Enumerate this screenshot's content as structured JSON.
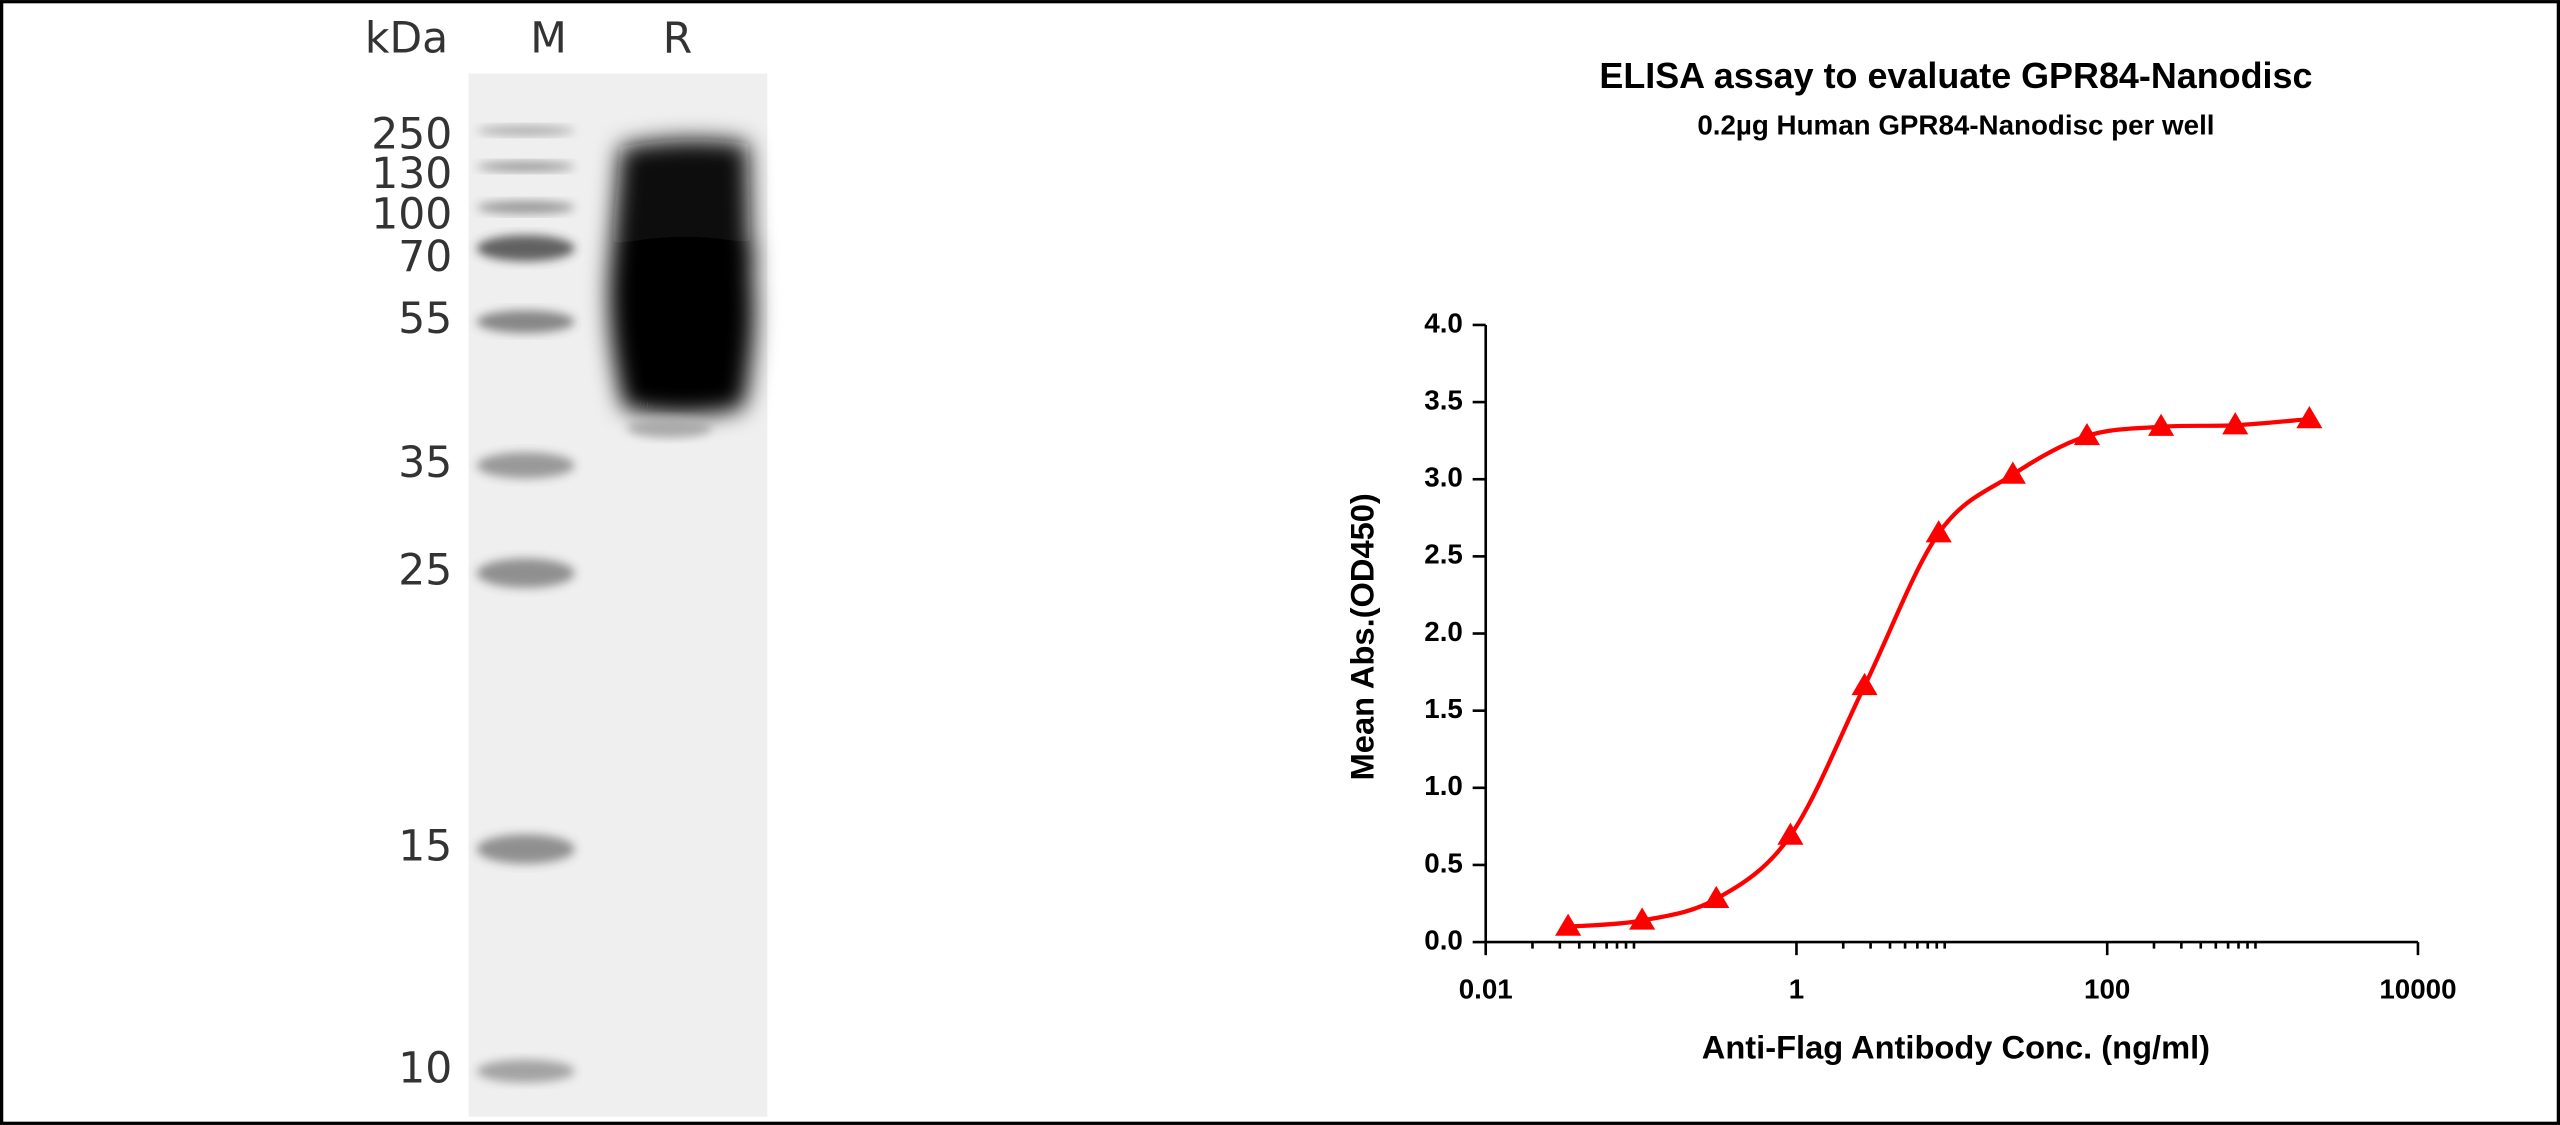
{
  "gel": {
    "unit": "kDa",
    "lane_labels": [
      "M",
      "R"
    ],
    "markers": [
      250,
      130,
      100,
      70,
      55,
      35,
      25,
      15,
      10
    ]
  },
  "chart_data": {
    "type": "scatter",
    "title": "ELISA assay to evaluate GPR84-Nanodisc",
    "subtitle": "0.2µg Human GPR84-Nanodisc per well",
    "x_label": "Anti-Flag Antibody Conc. (ng/ml)",
    "y_label": "Mean Abs.(OD450)",
    "xscale": "log",
    "x": [
      0.0339,
      0.1016,
      0.3048,
      0.9145,
      2.743,
      8.23,
      24.69,
      74.07,
      222.2,
      666.7,
      2000
    ],
    "series": [
      {
        "name": "GPR84-Nanodisc",
        "color": "#ff0000",
        "marker": "triangle",
        "fit_line": true,
        "values": [
          0.1,
          0.14,
          0.28,
          0.69,
          1.66,
          2.65,
          3.03,
          3.28,
          3.34,
          3.35,
          3.39
        ]
      }
    ],
    "xlim": [
      0.01,
      10000
    ],
    "xticks": [
      0.01,
      1,
      100,
      10000
    ],
    "ylim": [
      0,
      4
    ],
    "yticks": [
      {
        "value": 0,
        "label": "0.0"
      },
      {
        "value": 0.5,
        "label": "0.5"
      },
      {
        "value": 1,
        "label": "1.0"
      },
      {
        "value": 1.5,
        "label": "1.5"
      },
      {
        "value": 2,
        "label": "2.0"
      },
      {
        "value": 2.5,
        "label": "2.5"
      },
      {
        "value": 3,
        "label": "3.0"
      },
      {
        "value": 3.5,
        "label": "3.5"
      },
      {
        "value": 4,
        "label": "4.0"
      }
    ],
    "grid": false,
    "legend": false
  }
}
